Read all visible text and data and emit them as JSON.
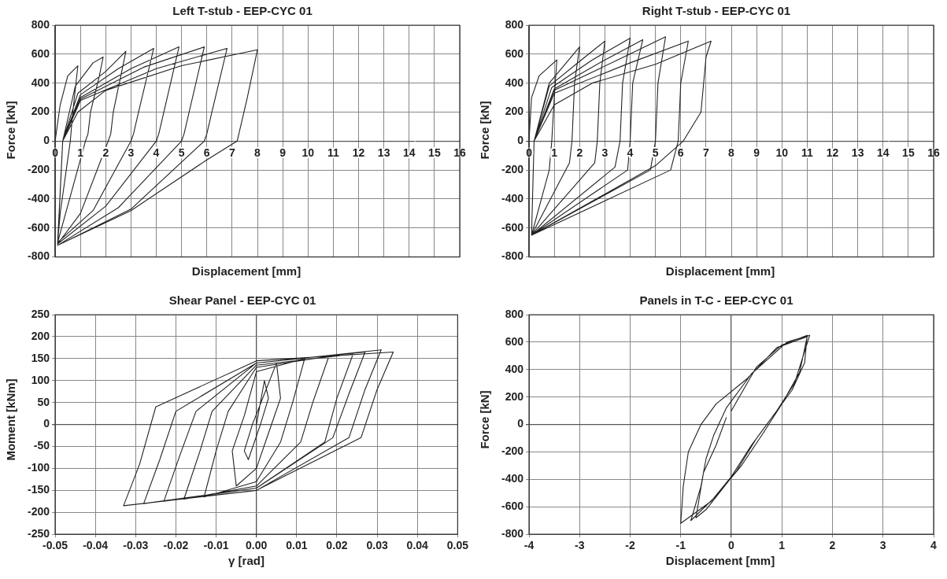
{
  "chart_data": [
    {
      "type": "line",
      "title": "Left T-stub - EEP-CYC 01",
      "xlabel": "Displacement [mm]",
      "ylabel": "Force [kN]",
      "color": "#222222",
      "grid": true,
      "legend": false,
      "xlim": [
        0,
        16
      ],
      "xticks": [
        0,
        1,
        2,
        3,
        4,
        5,
        6,
        7,
        8,
        9,
        10,
        11,
        12,
        13,
        14,
        15,
        16
      ],
      "ylim": [
        -800,
        800
      ],
      "yticks": [
        -800,
        -600,
        -400,
        -200,
        0,
        200,
        400,
        600,
        800
      ],
      "x": [
        0,
        0.2,
        0.5,
        0.9,
        0.7,
        0.6,
        0.2,
        0.1,
        0.3,
        0.8,
        1.5,
        1.9,
        1.75,
        1.4,
        1.3,
        1.2,
        0.1,
        0.3,
        0.9,
        2.0,
        2.8,
        2.3,
        2.2,
        2.1,
        1.0,
        0.1,
        0.3,
        1.0,
        2.5,
        3.9,
        3.3,
        3.1,
        3.0,
        1.5,
        0.1,
        0.3,
        1.0,
        3.0,
        4.9,
        4.3,
        4.1,
        4.0,
        2.0,
        0.1,
        0.3,
        1.0,
        3.5,
        5.9,
        5.3,
        5.1,
        5.0,
        2.5,
        0.1,
        0.3,
        1.0,
        4.0,
        6.8,
        6.2,
        6.0,
        5.9,
        3.0,
        0.1,
        0.3,
        0.9,
        2.0,
        5.0,
        8.0,
        7.6,
        7.2,
        6.0,
        3.0,
        0.1
      ],
      "values": [
        0,
        250,
        450,
        520,
        200,
        0,
        -500,
        -700,
        0,
        380,
        540,
        580,
        450,
        200,
        50,
        0,
        -700,
        0,
        330,
        480,
        620,
        200,
        50,
        0,
        -500,
        -710,
        0,
        320,
        500,
        640,
        200,
        50,
        0,
        -480,
        -700,
        0,
        300,
        500,
        650,
        200,
        50,
        0,
        -450,
        -710,
        0,
        290,
        510,
        650,
        200,
        50,
        0,
        -460,
        -720,
        0,
        280,
        500,
        640,
        200,
        50,
        0,
        -470,
        -720,
        0,
        200,
        350,
        520,
        630,
        300,
        0,
        -130,
        -480,
        -720
      ]
    },
    {
      "type": "line",
      "title": "Right T-stub - EEP-CYC 01",
      "xlabel": "Displacement [mm]",
      "ylabel": "Force [kN]",
      "color": "#222222",
      "grid": true,
      "legend": false,
      "xlim": [
        0,
        16
      ],
      "xticks": [
        0,
        1,
        2,
        3,
        4,
        5,
        6,
        7,
        8,
        9,
        10,
        11,
        12,
        13,
        14,
        15,
        16
      ],
      "ylim": [
        -800,
        800
      ],
      "yticks": [
        -800,
        -600,
        -400,
        -200,
        0,
        200,
        400,
        600,
        800
      ],
      "x": [
        0,
        0.1,
        0.4,
        1.1,
        1.0,
        0.9,
        0.8,
        0.1,
        0.2,
        0.8,
        2.0,
        1.8,
        1.7,
        1.6,
        0.1,
        0.2,
        0.8,
        2.0,
        3.0,
        2.8,
        2.7,
        2.6,
        0.1,
        0.2,
        0.9,
        2.5,
        4.0,
        3.7,
        3.6,
        3.4,
        0.1,
        0.2,
        1.0,
        3.0,
        4.5,
        4.1,
        4.0,
        3.9,
        0.1,
        0.2,
        1.0,
        3.5,
        5.4,
        5.1,
        5.0,
        4.8,
        0.1,
        0.2,
        1.0,
        4.0,
        6.3,
        6.0,
        5.9,
        5.6,
        0.1,
        0.2,
        1.0,
        2.5,
        5.0,
        7.2,
        7.0,
        6.8,
        6.1,
        5.0,
        0.1
      ],
      "values": [
        0,
        300,
        450,
        560,
        300,
        0,
        -200,
        -650,
        0,
        400,
        650,
        400,
        0,
        -150,
        -650,
        0,
        380,
        550,
        690,
        400,
        0,
        -150,
        -650,
        0,
        370,
        560,
        710,
        400,
        0,
        -180,
        -650,
        0,
        360,
        560,
        700,
        400,
        0,
        -200,
        -650,
        0,
        350,
        560,
        720,
        400,
        0,
        -200,
        -650,
        0,
        330,
        540,
        690,
        400,
        0,
        -200,
        -650,
        0,
        250,
        400,
        530,
        690,
        580,
        200,
        0,
        -170,
        -650
      ]
    },
    {
      "type": "line",
      "title": "Shear Panel - EEP-CYC 01",
      "xlabel": "γ [rad]",
      "ylabel": "Moment [kNm]",
      "color": "#222222",
      "grid": true,
      "legend": false,
      "xlim": [
        -0.05,
        0.05
      ],
      "xticks": [
        -0.05,
        -0.04,
        -0.03,
        -0.02,
        -0.01,
        {
          "value": 0,
          "label": "0.00"
        },
        0.01,
        0.02,
        0.03,
        0.04,
        0.05
      ],
      "ylim": [
        -250,
        250
      ],
      "yticks": [
        -250,
        -200,
        -150,
        -100,
        -50,
        0,
        50,
        100,
        150,
        200,
        250
      ],
      "x": [
        0,
        0.002,
        0.003,
        0.001,
        -0.002,
        -0.003,
        -0.001,
        0.005,
        0.006,
        0.003,
        0,
        -0.005,
        -0.006,
        -0.003,
        0,
        0.012,
        0.009,
        0.006,
        0,
        -0.013,
        -0.01,
        -0.007,
        0,
        0.018,
        0.014,
        0.011,
        0,
        -0.018,
        -0.014,
        -0.011,
        0,
        0.024,
        0.02,
        0.017,
        0,
        -0.023,
        -0.019,
        -0.015,
        0,
        0.027,
        0.023,
        0.019,
        0,
        -0.028,
        -0.024,
        -0.02,
        0,
        0.031,
        0.027,
        0.023,
        0,
        -0.033,
        -0.029,
        -0.025,
        0,
        0.034,
        0.03,
        0.026,
        0
      ],
      "values": [
        0,
        100,
        60,
        0,
        -80,
        -60,
        0,
        140,
        60,
        -20,
        -100,
        -140,
        -60,
        20,
        120,
        150,
        50,
        -40,
        -130,
        -165,
        -60,
        30,
        130,
        155,
        50,
        -40,
        -140,
        -170,
        -60,
        30,
        135,
        160,
        60,
        -40,
        -145,
        -175,
        -70,
        30,
        140,
        165,
        70,
        -30,
        -145,
        -180,
        -80,
        30,
        140,
        170,
        80,
        -30,
        -150,
        -185,
        -90,
        40,
        145,
        165,
        80,
        -30,
        -150
      ]
    },
    {
      "type": "line",
      "title": "Panels in T-C - EEP-CYC 01",
      "xlabel": "Displacement [mm]",
      "ylabel": "Force  [kN]",
      "color": "#222222",
      "grid": true,
      "legend": false,
      "xlim": [
        -4,
        4
      ],
      "xticks": [
        -4,
        -3,
        -2,
        -1,
        0,
        1,
        2,
        3,
        4
      ],
      "ylim": [
        -800,
        800
      ],
      "yticks": [
        -800,
        -600,
        -400,
        -200,
        0,
        200,
        400,
        600,
        800
      ],
      "x": [
        0,
        0.5,
        1.0,
        1.5,
        1.45,
        1.2,
        0.8,
        0.4,
        0,
        -0.4,
        -1.0,
        -0.95,
        -0.85,
        -0.6,
        -0.3,
        0.3,
        0.9,
        1.5,
        1.35,
        1.0,
        0.6,
        0.2,
        -0.3,
        -0.8,
        -0.6,
        -0.5,
        -0.35,
        -0.1,
        0.4,
        1.1,
        1.55,
        1.25,
        0.9,
        0.5,
        0.1,
        -0.5,
        -0.7,
        -0.55,
        -0.3,
        -0.1
      ],
      "values": [
        100,
        420,
        580,
        650,
        450,
        250,
        50,
        -150,
        -380,
        -560,
        -720,
        -450,
        -200,
        0,
        150,
        330,
        560,
        640,
        380,
        150,
        -80,
        -300,
        -520,
        -700,
        -450,
        -250,
        -80,
        120,
        370,
        600,
        650,
        300,
        100,
        -100,
        -340,
        -620,
        -680,
        -350,
        -150,
        50
      ]
    }
  ]
}
